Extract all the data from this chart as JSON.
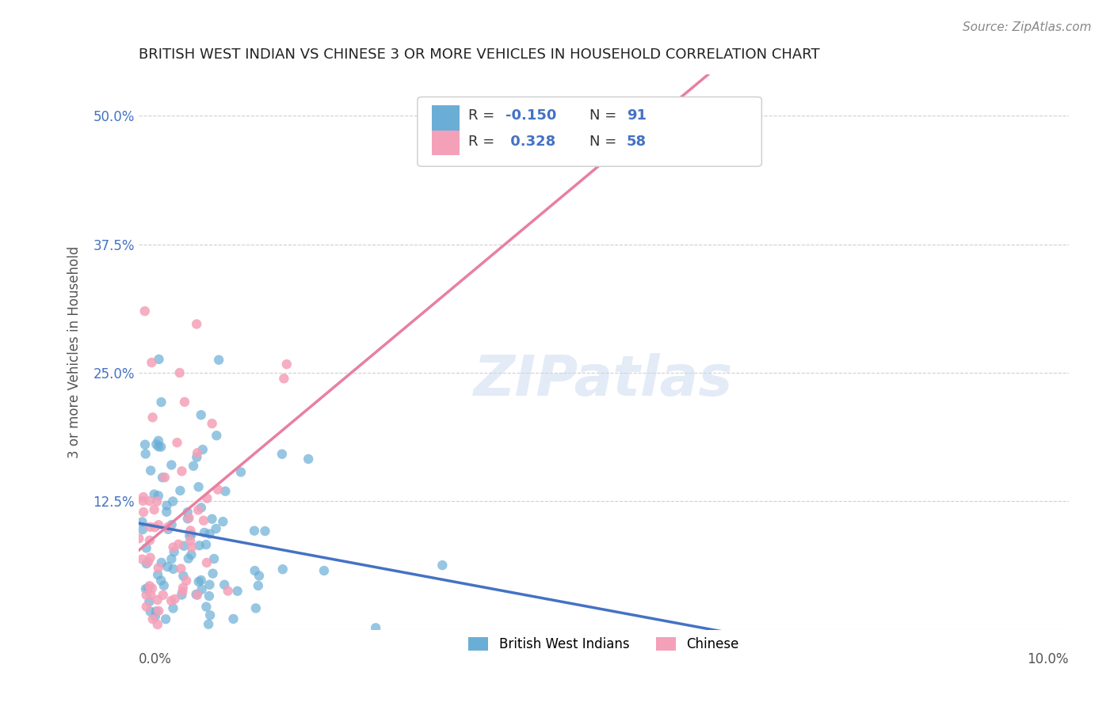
{
  "title": "BRITISH WEST INDIAN VS CHINESE 3 OR MORE VEHICLES IN HOUSEHOLD CORRELATION CHART",
  "source": "Source: ZipAtlas.com",
  "ylabel": "3 or more Vehicles in Household",
  "yticks": [
    "50.0%",
    "37.5%",
    "25.0%",
    "12.5%"
  ],
  "ytick_vals": [
    0.5,
    0.375,
    0.25,
    0.125
  ],
  "xlim": [
    0.0,
    0.1
  ],
  "ylim": [
    0.0,
    0.54
  ],
  "bwi_color": "#6aaed6",
  "chinese_color": "#f4a0b8",
  "bwi_line_color": "#4472c4",
  "chinese_line_color": "#e87fa0",
  "watermark": "ZIPatlas",
  "bwi_R": -0.15,
  "bwi_N": 91,
  "chinese_R": 0.328,
  "chinese_N": 58,
  "background_color": "#ffffff",
  "grid_color": "#d0d0d0"
}
